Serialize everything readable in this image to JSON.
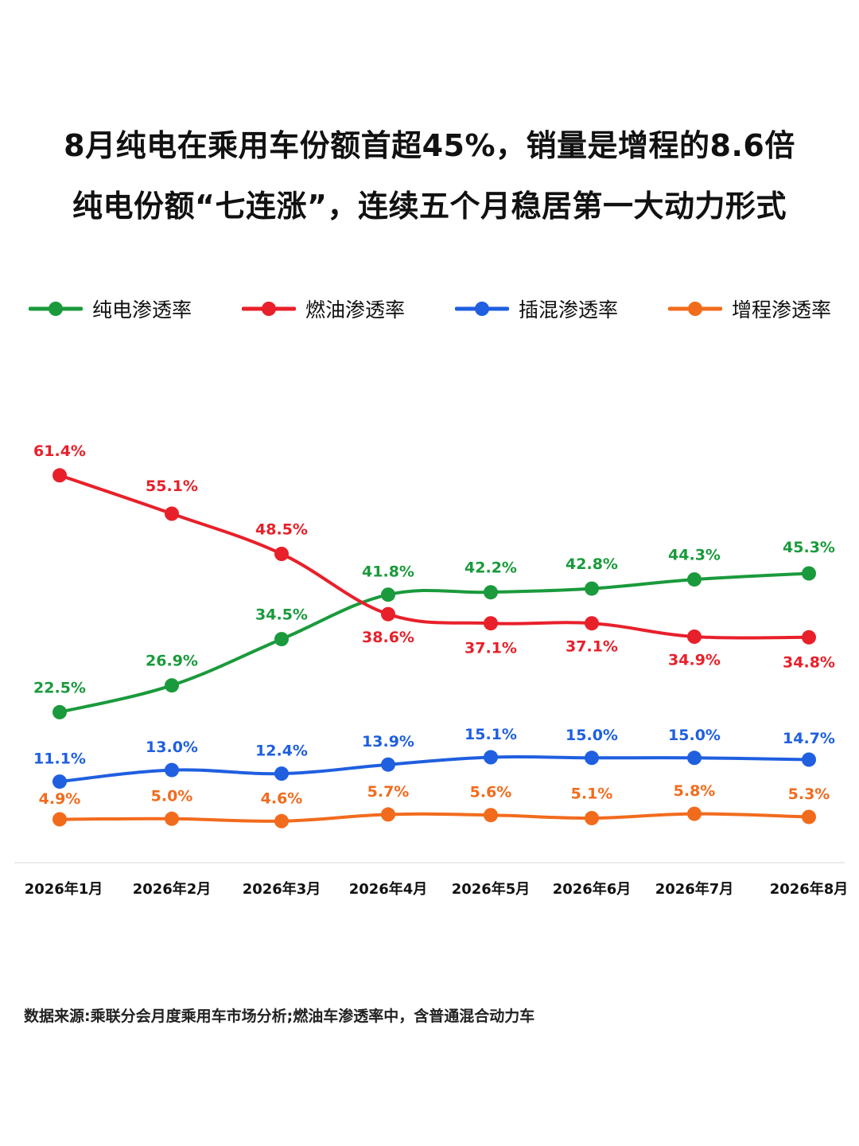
{
  "title": {
    "line1": "8月纯电在乘用车份额首超45%，销量是增程的8.6倍",
    "line2": "纯电份额“七连涨”，连续五个月稳居第一大动力形式"
  },
  "legend": [
    {
      "label": "纯电渗透率",
      "color": "#1a9a3c"
    },
    {
      "label": "燃油渗透率",
      "color": "#e8202a"
    },
    {
      "label": "插混渗透率",
      "color": "#1f5fe0"
    },
    {
      "label": "增程渗透率",
      "color": "#f26b1d"
    }
  ],
  "chart_data": {
    "type": "line",
    "categories": [
      "2026年1月",
      "2026年2月",
      "2026年3月",
      "2026年4月",
      "2026年5月",
      "2026年6月",
      "2026年7月",
      "2026年8月"
    ],
    "series": [
      {
        "name": "纯电渗透率",
        "color": "#1a9a3c",
        "values": [
          22.5,
          26.9,
          34.5,
          41.8,
          42.2,
          42.8,
          44.3,
          45.3
        ],
        "labels": [
          "22.5%",
          "26.9%",
          "34.5%",
          "41.8%",
          "42.2%",
          "42.8%",
          "44.3%",
          "45.3%"
        ]
      },
      {
        "name": "燃油渗透率",
        "color": "#e8202a",
        "values": [
          61.4,
          55.1,
          48.5,
          38.6,
          37.1,
          37.1,
          34.9,
          34.8
        ],
        "labels": [
          "61.4%",
          "55.1%",
          "48.5%",
          "38.6%",
          "37.1%",
          "37.1%",
          "34.9%",
          "34.8%"
        ]
      },
      {
        "name": "插混渗透率",
        "color": "#1f5fe0",
        "values": [
          11.1,
          13.0,
          12.4,
          13.9,
          15.1,
          15.0,
          15.0,
          14.7
        ],
        "labels": [
          "11.1%",
          "13.0%",
          "12.4%",
          "13.9%",
          "15.1%",
          "15.0%",
          "15.0%",
          "14.7%"
        ]
      },
      {
        "name": "增程渗透率",
        "color": "#f26b1d",
        "values": [
          4.9,
          5.0,
          4.6,
          5.7,
          5.6,
          5.1,
          5.8,
          5.3
        ],
        "labels": [
          "4.9%",
          "5.0%",
          "4.6%",
          "5.7%",
          "5.6%",
          "5.1%",
          "5.8%",
          "5.3%"
        ]
      }
    ],
    "grid": false,
    "legend_position": "top"
  },
  "footer": {
    "source": "数据来源:乘联分会月度乘用车市场分析;燃油车渗透率中，含普通混合动力车"
  }
}
